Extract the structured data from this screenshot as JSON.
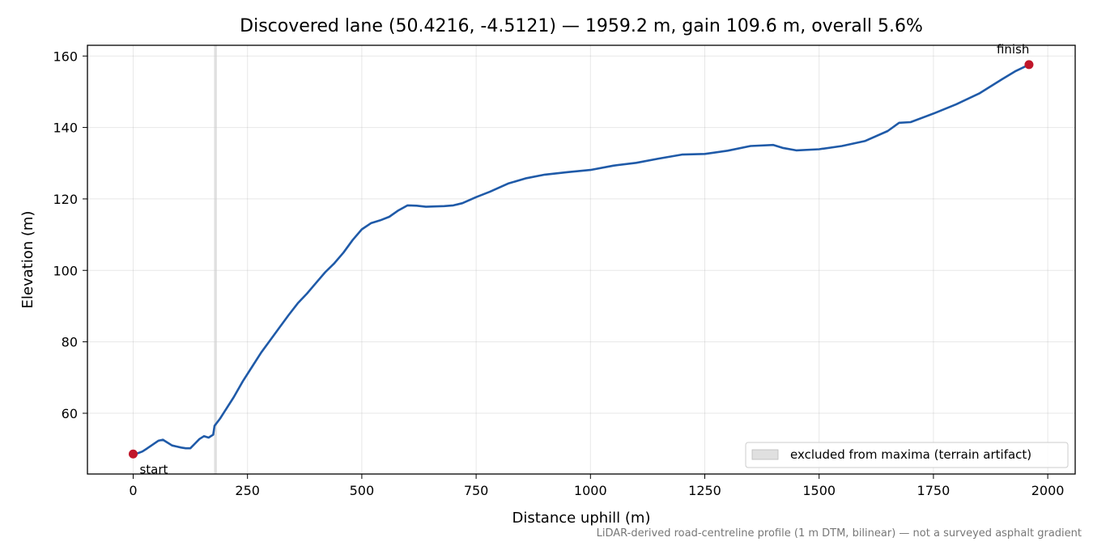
{
  "chart_data": {
    "type": "line",
    "title": "Discovered lane (50.4216, -4.5121) — 1959.2 m, gain 109.6 m, overall 5.6%",
    "xlabel": "Distance uphill (m)",
    "ylabel": "Elevation (m)",
    "xlim": [
      -100,
      2060
    ],
    "ylim": [
      43,
      163
    ],
    "xticks": [
      0,
      250,
      500,
      750,
      1000,
      1250,
      1500,
      1750,
      2000
    ],
    "yticks": [
      60,
      80,
      100,
      120,
      140,
      160
    ],
    "grid": true,
    "legend_position": "lower-right",
    "excluded_region": {
      "label": "excluded from maxima (terrain artifact)",
      "x_range": [
        177,
        183
      ]
    },
    "series": [
      {
        "color": "#1f5aa8",
        "x": [
          0,
          10,
          20,
          30,
          40,
          55,
          65,
          75,
          85,
          95,
          105,
          115,
          125,
          135,
          145,
          155,
          165,
          175,
          178,
          181,
          190,
          200,
          220,
          240,
          260,
          280,
          300,
          320,
          340,
          360,
          380,
          400,
          420,
          440,
          460,
          480,
          500,
          520,
          540,
          560,
          580,
          600,
          620,
          640,
          660,
          680,
          700,
          720,
          750,
          780,
          820,
          860,
          900,
          950,
          1000,
          1050,
          1100,
          1150,
          1200,
          1250,
          1300,
          1350,
          1400,
          1420,
          1450,
          1500,
          1550,
          1600,
          1650,
          1675,
          1700,
          1750,
          1800,
          1850,
          1900,
          1930,
          1959
        ],
        "y": [
          48.6,
          48.8,
          49.3,
          50.1,
          51,
          52.3,
          52.6,
          51.8,
          51,
          50.7,
          50.4,
          50.2,
          50.2,
          51.5,
          52.8,
          53.6,
          53.2,
          54,
          56.5,
          57,
          58.5,
          60.5,
          64.5,
          69,
          73,
          77,
          80.5,
          84,
          87.5,
          90.8,
          93.5,
          96.5,
          99.5,
          102,
          105,
          108.5,
          111.5,
          113.2,
          114,
          115,
          116.8,
          118.2,
          118.1,
          117.8,
          117.9,
          118,
          118.2,
          118.8,
          120.5,
          122,
          124.3,
          125.8,
          126.8,
          127.5,
          128.1,
          129.3,
          130.1,
          131.3,
          132.4,
          132.6,
          133.5,
          134.8,
          135.1,
          134.3,
          133.6,
          133.9,
          134.8,
          136.2,
          139,
          141.3,
          141.5,
          143.9,
          146.5,
          149.5,
          153.5,
          155.8,
          157.6
        ]
      }
    ],
    "markers": [
      {
        "label": "start",
        "x": 0,
        "y": 48.6,
        "color": "#c0162a"
      },
      {
        "label": "finish",
        "x": 1959,
        "y": 157.6,
        "color": "#c0162a"
      }
    ]
  },
  "footer_note": "LiDAR-derived road-centreline profile (1 m DTM, bilinear) — not a surveyed asphalt gradient"
}
